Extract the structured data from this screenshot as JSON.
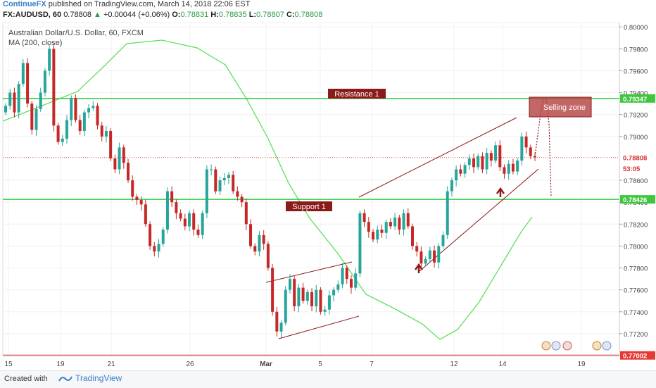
{
  "header": {
    "author": "ContinueFX",
    "published": "published on TradingView.com, March 14, 2018 22:06 EST",
    "symbol": "FX:AUDUSD, 60",
    "last": "0.78808",
    "change_arrow": "▲",
    "change": "+0.00044 (+0.06%)",
    "o_label": "O:",
    "o": "0.78831",
    "h_label": "H:",
    "h": "0.78835",
    "l_label": "L:",
    "l": "0.78807",
    "c_label": "C:",
    "c": "0.78808"
  },
  "legend": {
    "instrument": "Australian Dollar/U.S. Dollar, 60, FXCM",
    "indicator": "MA (200, close)"
  },
  "footer": {
    "created_with": "Created with",
    "brand": "TradingView"
  },
  "colors": {
    "up": "#26a69a",
    "down": "#c62828",
    "ma": "#5be15b",
    "level": "#2ecc40",
    "annotation": "#8b1a1a",
    "bottom_level": "#e53935"
  },
  "chart_data": {
    "type": "candlestick",
    "ylim": [
      0.77,
      0.8004
    ],
    "yticks": [
      "0.80000",
      "0.79800",
      "0.79600",
      "0.79400",
      "0.79200",
      "0.79000",
      "0.78600",
      "0.78400",
      "0.78200",
      "0.78000",
      "0.77800",
      "0.77600",
      "0.77400",
      "0.77200"
    ],
    "xticks": [
      "15",
      "19",
      "21",
      "26",
      "Mar",
      "5",
      "7",
      "12",
      "14",
      "19"
    ],
    "price_labels": [
      {
        "text": "0.79347",
        "value": 0.79347,
        "kind": "level"
      },
      {
        "text": "0.78808",
        "value": 0.78808,
        "kind": "last"
      },
      {
        "text": "53:05",
        "value": 0.78708,
        "kind": "countdown"
      },
      {
        "text": "0.78426",
        "value": 0.78426,
        "kind": "level"
      },
      {
        "text": "0.77002",
        "value": 0.77002,
        "kind": "bottom"
      }
    ],
    "levels": [
      {
        "name": "Resistance 1",
        "value": 0.79347
      },
      {
        "name": "Support 1",
        "value": 0.78426
      },
      {
        "name": "",
        "value": 0.77002
      }
    ],
    "annotations": {
      "selling_zone": "Selling zone"
    },
    "close": [
      0.7928,
      0.794,
      0.7922,
      0.7948,
      0.7967,
      0.793,
      0.7906,
      0.7925,
      0.794,
      0.796,
      0.798,
      0.791,
      0.7895,
      0.7898,
      0.7915,
      0.7935,
      0.7915,
      0.7905,
      0.7922,
      0.7926,
      0.7928,
      0.791,
      0.79,
      0.7905,
      0.788,
      0.787,
      0.789,
      0.7876,
      0.786,
      0.7845,
      0.7842,
      0.7838,
      0.782,
      0.78,
      0.7795,
      0.7802,
      0.7815,
      0.785,
      0.784,
      0.783,
      0.7825,
      0.7818,
      0.783,
      0.7815,
      0.781,
      0.783,
      0.787,
      0.787,
      0.785,
      0.786,
      0.7862,
      0.7865,
      0.785,
      0.7845,
      0.784,
      0.782,
      0.78,
      0.7795,
      0.781,
      0.7802,
      0.778,
      0.774,
      0.7722,
      0.773,
      0.776,
      0.777,
      0.7745,
      0.7762,
      0.775,
      0.7758,
      0.7745,
      0.776,
      0.774,
      0.7742,
      0.7755,
      0.776,
      0.7765,
      0.778,
      0.777,
      0.7762,
      0.7775,
      0.783,
      0.7822,
      0.7813,
      0.7806,
      0.7815,
      0.7812,
      0.7822,
      0.7818,
      0.7826,
      0.7815,
      0.783,
      0.7818,
      0.78,
      0.7795,
      0.7784,
      0.7788,
      0.7796,
      0.7785,
      0.78,
      0.781,
      0.785,
      0.786,
      0.787,
      0.7866,
      0.7874,
      0.788,
      0.7872,
      0.7882,
      0.787,
      0.7885,
      0.7878,
      0.7892,
      0.7872,
      0.7866,
      0.7875,
      0.7868,
      0.7878,
      0.79,
      0.789,
      0.7882,
      0.7881
    ]
  }
}
